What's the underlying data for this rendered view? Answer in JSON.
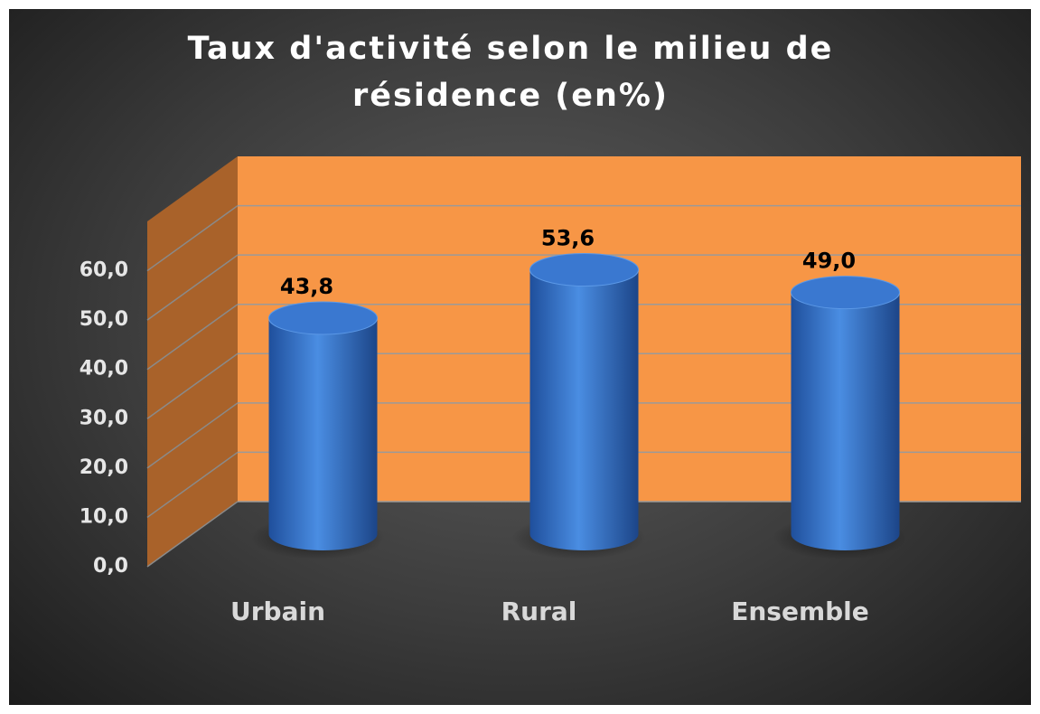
{
  "chart_data": {
    "type": "bar3d",
    "title": "Taux d'activité selon le milieu de résidence (en%)",
    "categories": [
      "Urbain",
      "Rural",
      "Ensemble"
    ],
    "values": [
      43.8,
      53.6,
      49.0
    ],
    "value_labels": [
      "43,8",
      "53,6",
      "49,0"
    ],
    "color": "#3a78d0",
    "wall_color": "#f79646",
    "ylim": [
      0,
      70
    ],
    "yticks": [
      {
        "value": 0,
        "label": "0,0"
      },
      {
        "value": 10,
        "label": "10,0"
      },
      {
        "value": 20,
        "label": "20,0"
      },
      {
        "value": 30,
        "label": "30,0"
      },
      {
        "value": 40,
        "label": "40,0"
      },
      {
        "value": 50,
        "label": "50,0"
      },
      {
        "value": 60,
        "label": "60,0"
      }
    ],
    "grid": true
  }
}
